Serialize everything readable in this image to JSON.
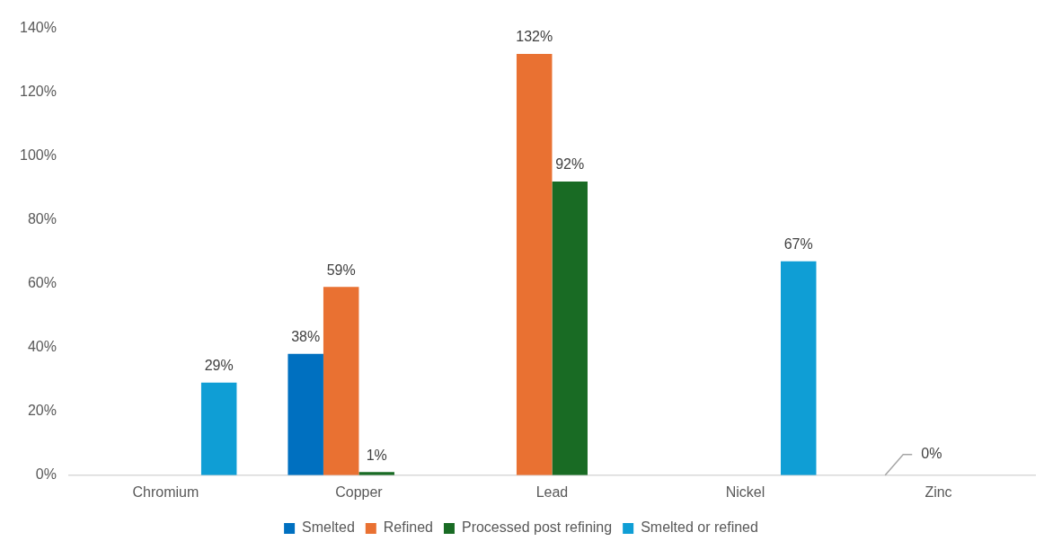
{
  "chart_data": {
    "type": "bar",
    "categories": [
      "Chromium",
      "Copper",
      "Lead",
      "Nickel",
      "Zinc"
    ],
    "series": [
      {
        "name": "Smelted",
        "color": "#0070c0",
        "values": [
          null,
          38,
          null,
          null,
          0
        ],
        "value_labels": [
          null,
          "38%",
          null,
          null,
          "0%"
        ]
      },
      {
        "name": "Refined",
        "color": "#e97132",
        "values": [
          null,
          59,
          132,
          null,
          null
        ],
        "value_labels": [
          null,
          "59%",
          "132%",
          null,
          null
        ]
      },
      {
        "name": "Processed post refining",
        "color": "#196b24",
        "values": [
          null,
          1,
          92,
          null,
          null
        ],
        "value_labels": [
          null,
          "1%",
          "92%",
          null,
          null
        ]
      },
      {
        "name": "Smelted or refined",
        "color": "#0f9ed5",
        "values": [
          29,
          null,
          null,
          67,
          null
        ],
        "value_labels": [
          "29%",
          null,
          null,
          "67%",
          null
        ]
      }
    ],
    "ylim": [
      0,
      140
    ],
    "yticks": [
      {
        "value": 0,
        "label": "0%"
      },
      {
        "value": 20,
        "label": "20%"
      },
      {
        "value": 40,
        "label": "40%"
      },
      {
        "value": 60,
        "label": "60%"
      },
      {
        "value": 80,
        "label": "80%"
      },
      {
        "value": 100,
        "label": "100%"
      },
      {
        "value": 120,
        "label": "120%"
      },
      {
        "value": 140,
        "label": "140%"
      }
    ],
    "grid": false,
    "legend": "bottom"
  }
}
